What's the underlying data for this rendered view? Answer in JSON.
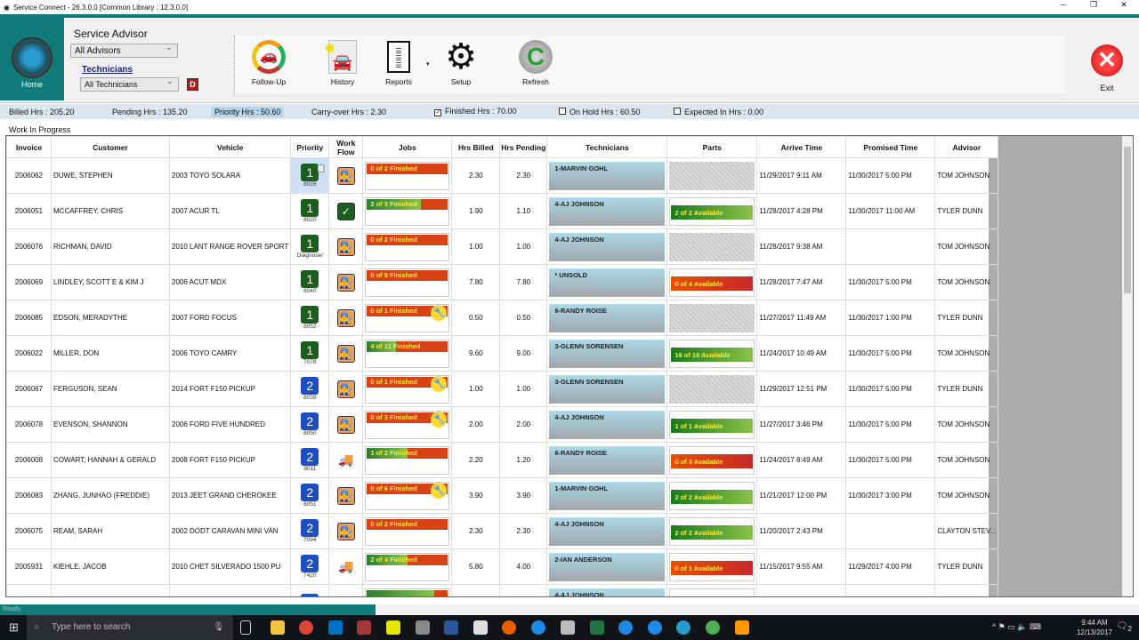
{
  "window": {
    "title": "Service Connect - 26.3.0.0 [Common Library : 12.3.0.0]"
  },
  "ribbon": {
    "home_label": "Home",
    "service_advisor_label": "Service Advisor",
    "advisor_select": "All Advisors",
    "technicians_link": "Technicians",
    "technician_select": "All Technicians",
    "d_button": "D",
    "tools": [
      {
        "label": "Follow-Up",
        "icon": "follow-up-icon"
      },
      {
        "label": "History",
        "icon": "history-icon"
      },
      {
        "label": "Reports",
        "icon": "reports-icon"
      },
      {
        "label": "Setup",
        "icon": "gear-icon"
      },
      {
        "label": "Refresh",
        "icon": "refresh-icon"
      }
    ],
    "exit_label": "Exit"
  },
  "stats": {
    "billed": "Billed Hrs : 205.20",
    "pending": "Pending Hrs : 135.20",
    "priority": "Priority Hrs : 50.60",
    "carryover": "Carry-over Hrs : 2.30",
    "finished": "Finished Hrs : 70.00",
    "finished_checked": true,
    "onhold": "On Hold Hrs : 60.50",
    "onhold_checked": false,
    "expected": "Expected In Hrs : 0.00",
    "expected_checked": false
  },
  "section_title": "Work In Progress",
  "columns": [
    "Invoice",
    "Customer",
    "Vehicle",
    "Priority",
    "Work Flow",
    "Jobs",
    "Hrs Billed",
    "Hrs Pending",
    "Technicians",
    "Parts",
    "Arrive Time",
    "Promised Time",
    "Advisor"
  ],
  "rows": [
    {
      "invoice": "2006062",
      "customer": "DUWE, STEPHEN",
      "vehicle": "2003 TOYO SOLARA",
      "priority": "1",
      "sub": "8026",
      "workflow": "person",
      "jobs": "0 of 2 Finished",
      "jobs_done": 0,
      "jobs_total": 2,
      "wrench": false,
      "billed": "2.30",
      "pending": "2.30",
      "tech": "1-MARVIN GOHL",
      "parts": "",
      "parts_status": "none",
      "arrive": "11/29/2017 9:11 AM",
      "promised": "11/30/2017 5:00 PM",
      "advisor": "TOM JOHNSON",
      "note": true
    },
    {
      "invoice": "2006051",
      "customer": "MCCAFFREY, CHRIS",
      "vehicle": "2007 ACUR TL",
      "priority": "1",
      "sub": "8020",
      "workflow": "check",
      "jobs": "2 of 3 Finished",
      "jobs_done": 2,
      "jobs_total": 3,
      "wrench": false,
      "billed": "1.90",
      "pending": "1.10",
      "tech": "4-AJ JOHNSON",
      "parts": "2 of 2 Available",
      "parts_status": "available",
      "arrive": "11/28/2017 4:28 PM",
      "promised": "11/30/2017 11:00 AM",
      "advisor": "TYLER DUNN"
    },
    {
      "invoice": "2006076",
      "customer": "RICHMAN, DAVID",
      "vehicle": "2010 LANT RANGE ROVER SPORT",
      "priority": "1",
      "sub": "Diagnose/",
      "workflow": "person",
      "jobs": "0 of 2 Finished",
      "jobs_done": 0,
      "jobs_total": 2,
      "wrench": false,
      "billed": "1.00",
      "pending": "1.00",
      "tech": "4-AJ JOHNSON",
      "parts": "",
      "parts_status": "none",
      "arrive": "11/28/2017 9:38 AM",
      "promised": "",
      "advisor": "TOM JOHNSON"
    },
    {
      "invoice": "2006069",
      "customer": "LINDLEY, SCOTT E & KIM J",
      "vehicle": "2006 ACUT MDX",
      "priority": "1",
      "sub": "8040",
      "workflow": "person",
      "jobs": "0 of 5 Finished",
      "jobs_done": 0,
      "jobs_total": 5,
      "wrench": false,
      "billed": "7.80",
      "pending": "7.80",
      "tech": "* UNSOLD",
      "parts": "0 of 4 Available",
      "parts_status": "unavailable",
      "arrive": "11/28/2017 7:47 AM",
      "promised": "11/30/2017 5:00 PM",
      "advisor": "TOM JOHNSON"
    },
    {
      "invoice": "2006085",
      "customer": "EDSON, MERADYTHE",
      "vehicle": "2007 FORD FOCUS",
      "priority": "1",
      "sub": "8052",
      "workflow": "person",
      "jobs": "0 of 1 Finished",
      "jobs_done": 0,
      "jobs_total": 1,
      "wrench": true,
      "billed": "0.50",
      "pending": "0.50",
      "tech": "6-RANDY ROISE",
      "parts": "",
      "parts_status": "none",
      "arrive": "11/27/2017 11:49 AM",
      "promised": "11/30/2017 1:00 PM",
      "advisor": "TYLER DUNN"
    },
    {
      "invoice": "2006022",
      "customer": "MILLER, DON",
      "vehicle": "2006 TOYO CAMRY",
      "priority": "1",
      "sub": "7078",
      "workflow": "person",
      "jobs": "4 of 11 Finished",
      "jobs_done": 4,
      "jobs_total": 11,
      "wrench": false,
      "billed": "9.60",
      "pending": "9.00",
      "tech": "3-GLENN SORENSEN",
      "parts": "16 of 16 Available",
      "parts_status": "available",
      "arrive": "11/24/2017 10:49 AM",
      "promised": "11/30/2017 5:00 PM",
      "advisor": "TOM JOHNSON"
    },
    {
      "invoice": "2006067",
      "customer": "FERGUSON, SEAN",
      "vehicle": "2014 FORT F150 PICKUP",
      "priority": "2",
      "sub": "8039",
      "workflow": "person",
      "jobs": "0 of 1 Finished",
      "jobs_done": 0,
      "jobs_total": 1,
      "wrench": true,
      "billed": "1.00",
      "pending": "1.00",
      "tech": "3-GLENN SORENSEN",
      "parts": "",
      "parts_status": "none",
      "arrive": "11/29/2017 12:51 PM",
      "promised": "11/30/2017 5:00 PM",
      "advisor": "TYLER DUNN"
    },
    {
      "invoice": "2006078",
      "customer": "EVENSON, SHANNON",
      "vehicle": "2006 FORD FIVE HUNDRED",
      "priority": "2",
      "sub": "8050",
      "workflow": "person",
      "jobs": "0 of 3 Finished",
      "jobs_done": 0,
      "jobs_total": 3,
      "wrench": true,
      "billed": "2.00",
      "pending": "2.00",
      "tech": "4-AJ JOHNSON",
      "parts": "1 of 1 Available",
      "parts_status": "available",
      "arrive": "11/27/2017 3:46 PM",
      "promised": "11/30/2017 5:00 PM",
      "advisor": "TOM JOHNSON"
    },
    {
      "invoice": "2006008",
      "customer": "COWART, HANNAH & GERALD",
      "vehicle": "2008 FORT F150 PICKUP",
      "priority": "2",
      "sub": "8011",
      "workflow": "truck",
      "jobs": "1 of 2 Finished",
      "jobs_done": 1,
      "jobs_total": 2,
      "wrench": false,
      "billed": "2.20",
      "pending": "1.20",
      "tech": "6-RANDY ROISE",
      "parts": "0 of 3 Available",
      "parts_status": "unavailable",
      "arrive": "11/24/2017 8:49 AM",
      "promised": "11/30/2017 5:00 PM",
      "advisor": "TOM JOHNSON"
    },
    {
      "invoice": "2006083",
      "customer": "ZHANG, JUNHAO (FREDDIE)",
      "vehicle": "2013 JEET GRAND CHEROKEE",
      "priority": "2",
      "sub": "8051",
      "workflow": "person",
      "jobs": "0 of 6 Finished",
      "jobs_done": 0,
      "jobs_total": 6,
      "wrench": true,
      "billed": "3.90",
      "pending": "3.90",
      "tech": "1-MARVIN GOHL",
      "parts": "2 of 2 Available",
      "parts_status": "available",
      "arrive": "11/21/2017 12:00 PM",
      "promised": "11/30/2017 3:00 PM",
      "advisor": "TOM JOHNSON"
    },
    {
      "invoice": "2006075",
      "customer": "REAM, SARAH",
      "vehicle": "2002 DODT CARAVAN MINI VAN",
      "priority": "2",
      "sub": "7094",
      "workflow": "person",
      "jobs": "0 of 2 Finished",
      "jobs_done": 0,
      "jobs_total": 2,
      "wrench": false,
      "billed": "2.30",
      "pending": "2.30",
      "tech": "4-AJ JOHNSON",
      "parts": "2 of 2 Available",
      "parts_status": "available",
      "arrive": "11/20/2017 2:43 PM",
      "promised": "",
      "advisor": "CLAYTON STEV..."
    },
    {
      "invoice": "2005931",
      "customer": "KIEHLE, JACOB",
      "vehicle": "2010 CHET SILVERADO 1500 PU",
      "priority": "2",
      "sub": "7420",
      "workflow": "truck",
      "jobs": "2 of 4 Finished",
      "jobs_done": 2,
      "jobs_total": 4,
      "wrench": false,
      "billed": "5.80",
      "pending": "4.00",
      "tech": "2-IAN ANDERSON",
      "parts": "0 of 1 Available",
      "parts_status": "unavailable",
      "arrive": "11/15/2017 9:55 AM",
      "promised": "11/29/2017 4:00 PM",
      "advisor": "TYLER DUNN"
    },
    {
      "invoice": "",
      "customer": "",
      "vehicle": "",
      "priority": "2",
      "sub": "",
      "workflow": "truck",
      "jobs": "",
      "jobs_done": 5,
      "jobs_total": 6,
      "wrench": false,
      "billed": "",
      "pending": "",
      "tech": "4-AJ JOHNSON",
      "parts": "",
      "parts_status": "available",
      "arrive": "",
      "promised": "",
      "advisor": ""
    }
  ],
  "status": {
    "text": "Ready",
    "progress": 0.33
  },
  "taskbar": {
    "search_placeholder": "Type here to search",
    "time": "9:44 AM",
    "date": "12/13/2017",
    "notifications": "2"
  }
}
